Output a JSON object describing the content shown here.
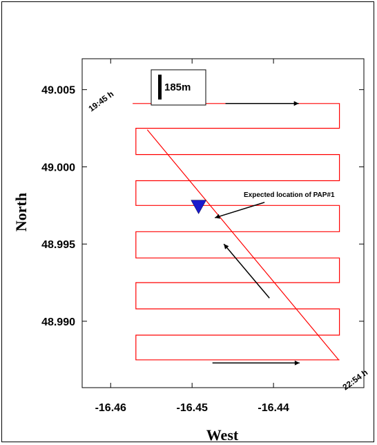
{
  "chart_data": {
    "type": "line",
    "title": "",
    "xlabel": "West",
    "ylabel": "North",
    "xlim": [
      -16.4635,
      -16.4289
    ],
    "ylim": [
      48.9857,
      49.007
    ],
    "xticks": [
      -16.46,
      -16.45,
      -16.44
    ],
    "xtick_labels": [
      "-16.46",
      "-16.45",
      "-16.44"
    ],
    "yticks": [
      48.99,
      48.995,
      49.0,
      49.005
    ],
    "ytick_labels": [
      "48.990",
      "48.995",
      "49.000",
      "49.005"
    ],
    "grid": false,
    "legend": "none",
    "series": [
      {
        "color": "#ff0000",
        "x": [
          -16.4573,
          -16.4319,
          -16.4319,
          -16.4569,
          -16.4569,
          -16.4319,
          -16.4319,
          -16.4569,
          -16.4569,
          -16.4319,
          -16.4319,
          -16.4569,
          -16.4569,
          -16.4319,
          -16.4319,
          -16.4569,
          -16.4569,
          -16.4319,
          -16.4319,
          -16.4569,
          -16.4569,
          -16.4319,
          -16.4319,
          -16.4569,
          -16.4569,
          -16.4319,
          -16.4319,
          -16.4569,
          -16.4569,
          -16.4319,
          -16.4319,
          -16.4569,
          -16.4569,
          -16.4319,
          -16.4319,
          -16.4569,
          -16.4569,
          -16.4319,
          -16.4319,
          -16.4569,
          -16.4569,
          -16.4319,
          -16.4319,
          -16.4569,
          -16.4569,
          -16.4319,
          -16.4319
        ],
        "y": [
          49.0041,
          49.0041,
          49.0025,
          49.0025,
          49.0008,
          49.0008,
          48.9991,
          48.9991,
          48.9975,
          48.9975,
          48.9958,
          48.9958,
          48.9941,
          48.9941,
          48.9925,
          48.9925,
          48.9908,
          48.9908,
          48.9891,
          48.9891,
          48.9875,
          48.9875,
          48.9875,
          48.9875,
          48.9875,
          48.9875,
          48.9875,
          48.9875,
          48.9875,
          48.9875,
          48.9875,
          48.9875,
          48.9875,
          48.9875,
          48.9875,
          48.9875,
          48.9875,
          48.9875,
          48.9875,
          48.9875,
          48.9875,
          48.9875,
          48.9875,
          48.9875,
          48.9875,
          48.9875,
          48.9875
        ]
      },
      {
        "color": "#ff0000",
        "x": [
          -16.432,
          -16.4555
        ],
        "y": [
          48.9875,
          49.0024
        ]
      }
    ],
    "markers": [
      {
        "type": "inverted-triangle",
        "color": "#1a1acc",
        "x": -16.4492,
        "y": 48.9974
      }
    ],
    "annotations": [
      {
        "text": "Expected location of PAP#1"
      },
      {
        "text": "19:45 h"
      },
      {
        "text": "22:54 h"
      }
    ],
    "direction_arrows": [
      {
        "x1": -16.4459,
        "y1": 49.0041,
        "x2": -16.4369,
        "y2": 49.0041
      },
      {
        "x1": -16.4405,
        "y1": 48.9915,
        "x2": -16.4461,
        "y2": 48.995
      },
      {
        "x1": -16.4475,
        "y1": 48.9873,
        "x2": -16.4368,
        "y2": 48.9873
      },
      {
        "x1": -16.4411,
        "y1": 48.9977,
        "x2": -16.4472,
        "y2": 48.9967
      }
    ],
    "scale_bar": {
      "label": "185m"
    }
  }
}
